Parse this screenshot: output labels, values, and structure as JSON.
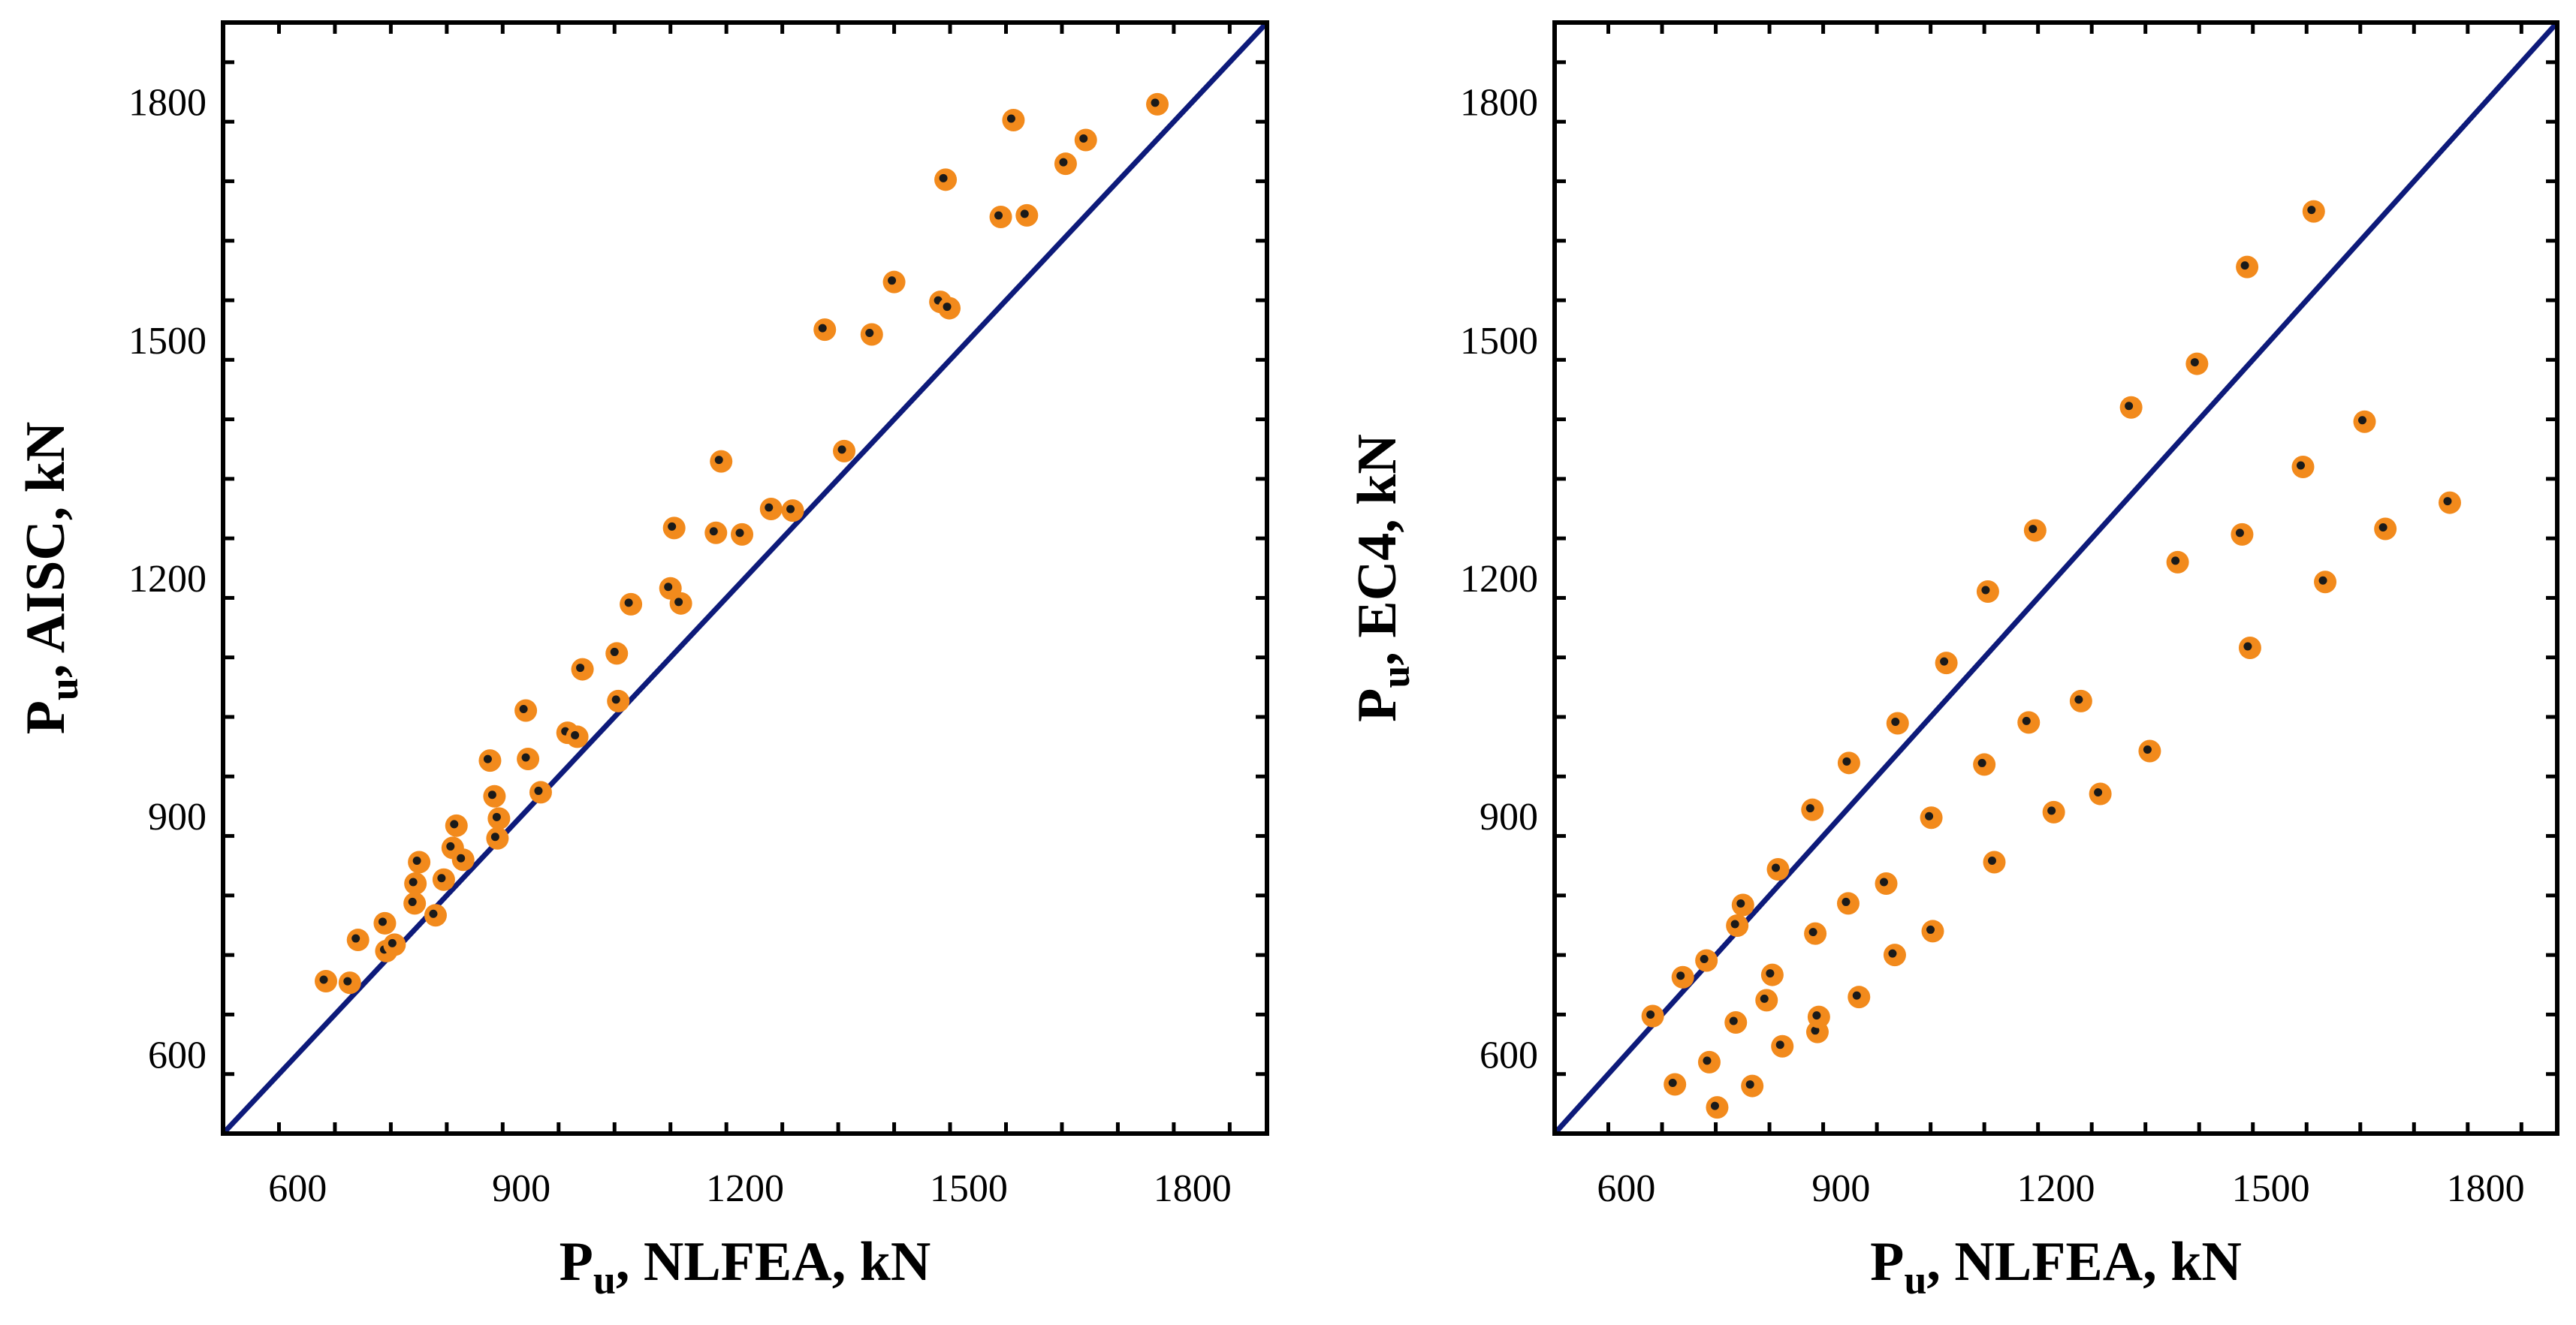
{
  "colors": {
    "marker_fill": "#f28a1c",
    "marker_center": "#1a1a1a",
    "reference_line": "#0d1a7a",
    "frame": "#000000"
  },
  "chart_data": [
    {
      "type": "scatter",
      "panel": "left",
      "xlabel": {
        "main": "P",
        "sub": "u",
        "rest": ", NLFEA, kN"
      },
      "ylabel": {
        "main": "P",
        "sub": "u",
        "rest": ", AISC, kN"
      },
      "xlim": [
        500,
        1900
      ],
      "ylim": [
        500,
        1900
      ],
      "xticks": [
        600,
        900,
        1200,
        1500,
        1800
      ],
      "yticks": [
        600,
        900,
        1200,
        1500,
        1800
      ],
      "xtick_labels": [
        "600",
        "900",
        "1200",
        "1500",
        "1800"
      ],
      "ytick_labels": [
        "600",
        "900",
        "1200",
        "1500",
        "1800"
      ],
      "reference_line": "y = x",
      "points": [
        [
          638,
          692
        ],
        [
          670,
          690
        ],
        [
          681,
          744
        ],
        [
          717,
          765
        ],
        [
          719,
          730
        ],
        [
          730,
          738
        ],
        [
          757,
          790
        ],
        [
          758,
          815
        ],
        [
          763,
          842
        ],
        [
          785,
          775
        ],
        [
          796,
          820
        ],
        [
          808,
          860
        ],
        [
          813,
          888
        ],
        [
          822,
          845
        ],
        [
          858,
          970
        ],
        [
          864,
          925
        ],
        [
          868,
          872
        ],
        [
          870,
          897
        ],
        [
          906,
          1033
        ],
        [
          909,
          972
        ],
        [
          926,
          930
        ],
        [
          962,
          1005
        ],
        [
          975,
          1000
        ],
        [
          982,
          1085
        ],
        [
          1028,
          1105
        ],
        [
          1030,
          1045
        ],
        [
          1047,
          1167
        ],
        [
          1100,
          1187
        ],
        [
          1105,
          1263
        ],
        [
          1114,
          1168
        ],
        [
          1161,
          1257
        ],
        [
          1168,
          1347
        ],
        [
          1196,
          1255
        ],
        [
          1235,
          1287
        ],
        [
          1264,
          1285
        ],
        [
          1307,
          1513
        ],
        [
          1333,
          1360
        ],
        [
          1370,
          1507
        ],
        [
          1400,
          1573
        ],
        [
          1462,
          1548
        ],
        [
          1469,
          1702
        ],
        [
          1474,
          1540
        ],
        [
          1543,
          1655
        ],
        [
          1560,
          1777
        ],
        [
          1578,
          1657
        ],
        [
          1630,
          1722
        ],
        [
          1657,
          1752
        ],
        [
          1753,
          1797
        ]
      ]
    },
    {
      "type": "scatter",
      "panel": "right",
      "xlabel": {
        "main": "P",
        "sub": "u",
        "rest": ", NLFEA, kN"
      },
      "ylabel": {
        "main": "P",
        "sub": "u",
        "rest": ", EC4, kN"
      },
      "xlim": [
        500,
        1900
      ],
      "ylim": [
        500,
        1900
      ],
      "xticks": [
        600,
        900,
        1200,
        1500,
        1800
      ],
      "yticks": [
        600,
        900,
        1200,
        1500,
        1800
      ],
      "xtick_labels": [
        "600",
        "900",
        "1200",
        "1500",
        "1800"
      ],
      "ytick_labels": [
        "600",
        "900",
        "1200",
        "1500",
        "1800"
      ],
      "reference_line": "y = x",
      "points": [
        [
          637,
          648
        ],
        [
          668,
          562
        ],
        [
          679,
          697
        ],
        [
          712,
          718
        ],
        [
          716,
          590
        ],
        [
          727,
          533
        ],
        [
          753,
          640
        ],
        [
          755,
          762
        ],
        [
          763,
          788
        ],
        [
          776,
          560
        ],
        [
          796,
          668
        ],
        [
          804,
          700
        ],
        [
          812,
          833
        ],
        [
          818,
          610
        ],
        [
          860,
          908
        ],
        [
          864,
          752
        ],
        [
          867,
          628
        ],
        [
          869,
          647
        ],
        [
          910,
          790
        ],
        [
          911,
          967
        ],
        [
          925,
          672
        ],
        [
          963,
          815
        ],
        [
          975,
          725
        ],
        [
          979,
          1017
        ],
        [
          1026,
          898
        ],
        [
          1028,
          755
        ],
        [
          1047,
          1093
        ],
        [
          1100,
          965
        ],
        [
          1105,
          1183
        ],
        [
          1114,
          842
        ],
        [
          1162,
          1018
        ],
        [
          1171,
          1260
        ],
        [
          1197,
          905
        ],
        [
          1235,
          1045
        ],
        [
          1262,
          928
        ],
        [
          1305,
          1415
        ],
        [
          1331,
          982
        ],
        [
          1370,
          1220
        ],
        [
          1397,
          1470
        ],
        [
          1460,
          1255
        ],
        [
          1467,
          1592
        ],
        [
          1471,
          1112
        ],
        [
          1545,
          1340
        ],
        [
          1560,
          1662
        ],
        [
          1576,
          1195
        ],
        [
          1631,
          1397
        ],
        [
          1660,
          1262
        ],
        [
          1750,
          1295
        ]
      ]
    }
  ]
}
